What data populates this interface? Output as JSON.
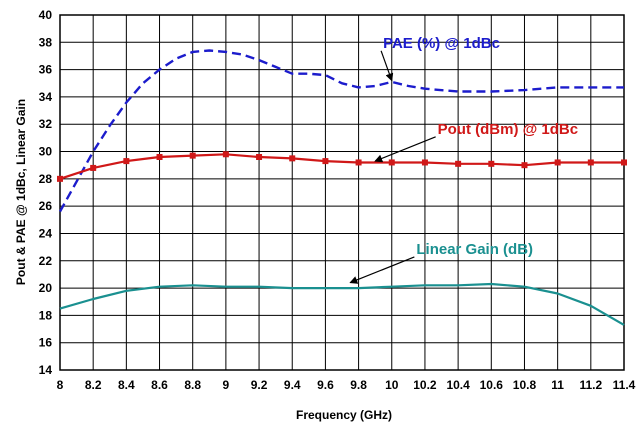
{
  "chart_data": {
    "type": "line",
    "title": "",
    "xlabel": "Frequency (GHz)",
    "ylabel": "Pout  & PAE @ 1dBc, Linear  Gain",
    "xlim": [
      8,
      11.4
    ],
    "ylim": [
      14,
      40
    ],
    "x_ticks": [
      "8",
      "8.2",
      "8.4",
      "8.6",
      "8.8",
      "9",
      "9.2",
      "9.4",
      "9.6",
      "9.8",
      "10",
      "10.2",
      "10.4",
      "10.6",
      "10.8",
      "11",
      "11.2",
      "11.4"
    ],
    "y_ticks": [
      "14",
      "16",
      "18",
      "20",
      "22",
      "24",
      "26",
      "28",
      "30",
      "32",
      "34",
      "36",
      "38",
      "40"
    ],
    "grid": true,
    "series": [
      {
        "name": "PAE (%) @ 1dBc",
        "color": "#1c1ccc",
        "style": "dashed",
        "x": [
          8.0,
          8.1,
          8.2,
          8.3,
          8.4,
          8.5,
          8.6,
          8.7,
          8.8,
          8.9,
          9.0,
          9.1,
          9.2,
          9.3,
          9.4,
          9.5,
          9.6,
          9.7,
          9.8,
          9.9,
          10.0,
          10.1,
          10.2,
          10.4,
          10.6,
          10.8,
          11.0,
          11.2,
          11.4
        ],
        "values": [
          25.6,
          27.8,
          30.0,
          31.9,
          33.6,
          35.0,
          36.0,
          36.8,
          37.3,
          37.4,
          37.3,
          37.1,
          36.7,
          36.2,
          35.7,
          35.7,
          35.6,
          35.0,
          34.7,
          34.8,
          35.1,
          34.8,
          34.6,
          34.4,
          34.4,
          34.5,
          34.7,
          34.7,
          34.7
        ]
      },
      {
        "name": "Pout (dBm) @ 1dBc",
        "color": "#d01818",
        "style": "solid-markers",
        "x": [
          8.0,
          8.2,
          8.4,
          8.6,
          8.8,
          9.0,
          9.2,
          9.4,
          9.6,
          9.8,
          10.0,
          10.2,
          10.4,
          10.6,
          10.8,
          11.0,
          11.2,
          11.4
        ],
        "values": [
          28.0,
          28.8,
          29.3,
          29.6,
          29.7,
          29.8,
          29.6,
          29.5,
          29.3,
          29.2,
          29.2,
          29.2,
          29.1,
          29.1,
          29.0,
          29.2,
          29.2,
          29.2
        ]
      },
      {
        "name": "Linear Gain (dB)",
        "color": "#1a9090",
        "style": "solid",
        "x": [
          8.0,
          8.2,
          8.4,
          8.6,
          8.8,
          9.0,
          9.2,
          9.4,
          9.6,
          9.8,
          10.0,
          10.2,
          10.4,
          10.6,
          10.8,
          11.0,
          11.2,
          11.4
        ],
        "values": [
          18.5,
          19.2,
          19.8,
          20.1,
          20.2,
          20.1,
          20.1,
          20.0,
          20.0,
          20.0,
          20.1,
          20.2,
          20.2,
          20.3,
          20.1,
          19.6,
          18.7,
          17.3
        ]
      }
    ],
    "annotations": [
      {
        "text": "PAE (%) @ 1dBc",
        "color": "#1c1ccc",
        "x": 10.3,
        "y": 37.6,
        "arrow_to": [
          10.0,
          35.2
        ]
      },
      {
        "text": "Pout (dBm) @ 1dBc",
        "color": "#d01818",
        "x": 10.7,
        "y": 31.3,
        "arrow_to": [
          9.9,
          29.3
        ]
      },
      {
        "text": "Linear Gain (dB)",
        "color": "#1a9090",
        "x": 10.5,
        "y": 22.5,
        "arrow_to": [
          9.75,
          20.4
        ]
      }
    ]
  }
}
